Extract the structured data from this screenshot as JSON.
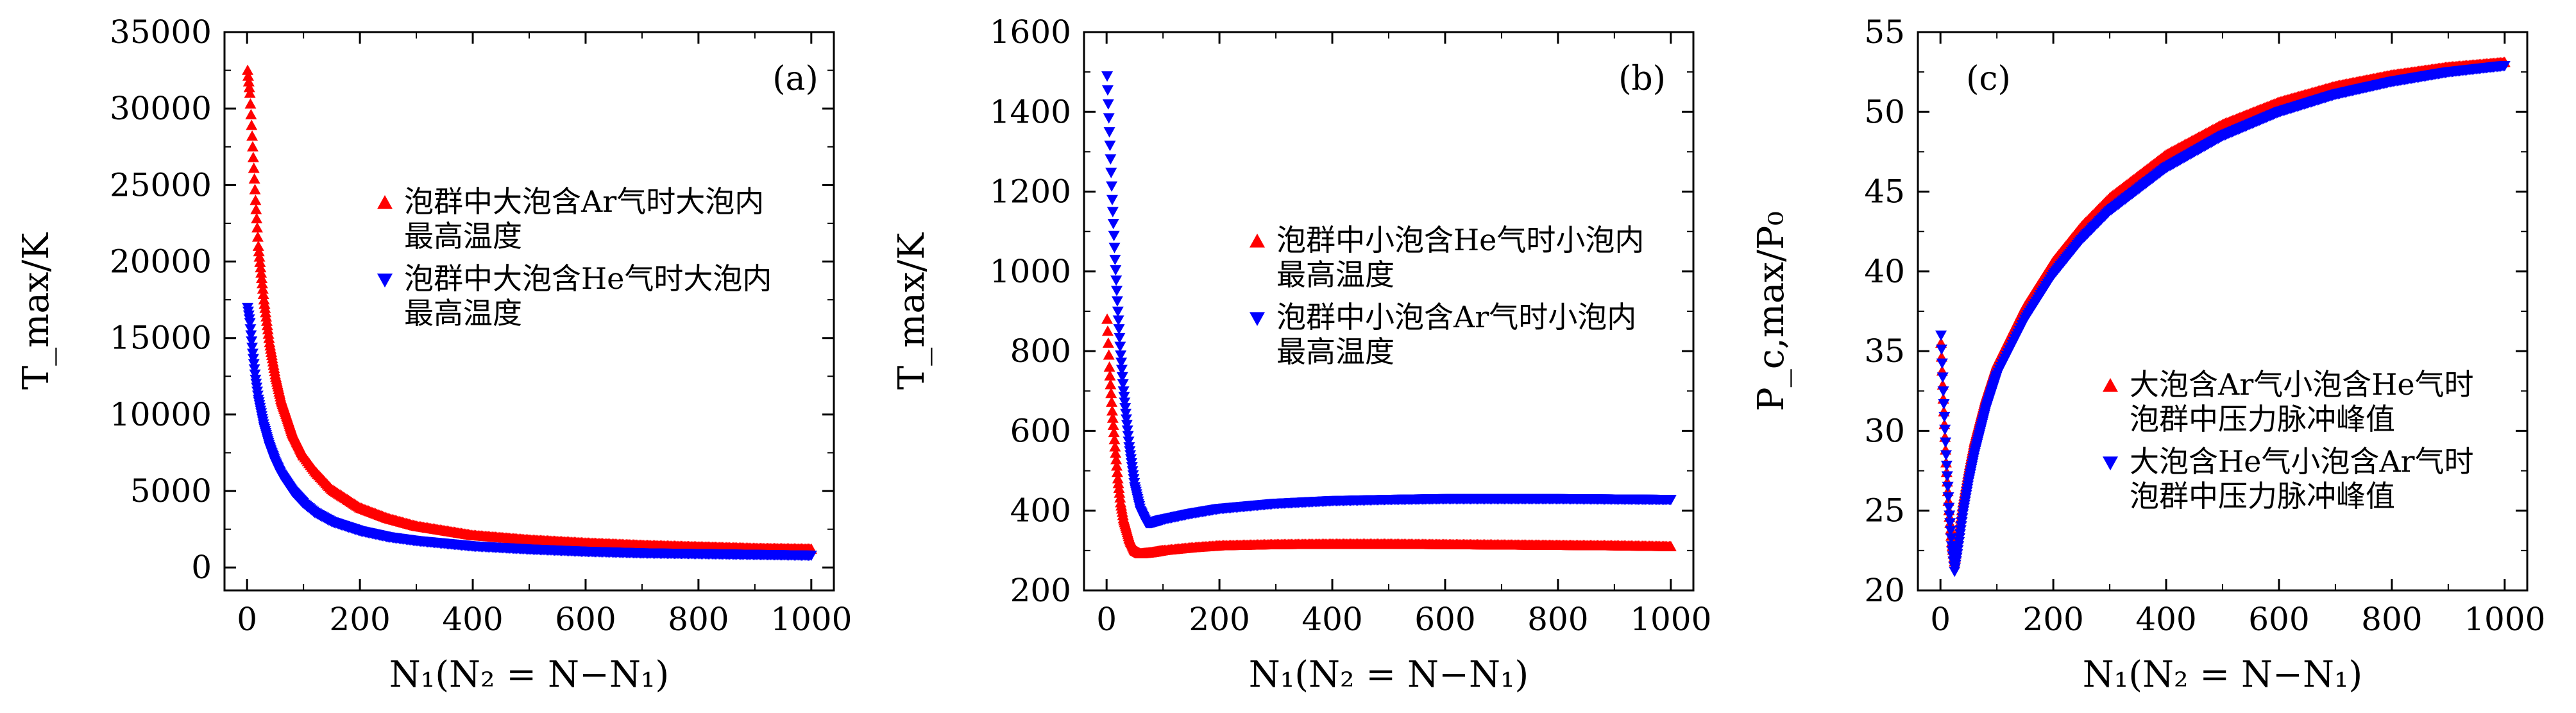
{
  "chart_data": [
    {
      "type": "scatter",
      "panel_label": "(a)",
      "xlabel": "N₁(N₂ = N−N₁)",
      "ylabel": "T_max/K",
      "xlim": [
        -40,
        1040
      ],
      "ylim": [
        -1500,
        35000
      ],
      "x_ticks": [
        0,
        200,
        400,
        600,
        800,
        1000
      ],
      "y_ticks": [
        0,
        5000,
        10000,
        15000,
        20000,
        25000,
        30000,
        35000
      ],
      "x_tick_labels": [
        "0",
        "200",
        "400",
        "600",
        "800",
        "1000"
      ],
      "y_tick_labels": [
        "0",
        "5000",
        "10000",
        "15000",
        "20000",
        "25000",
        "30000",
        "35000"
      ],
      "legend_position": "center-right",
      "grid": false,
      "series": [
        {
          "name": "泡群中大泡含Ar气时大泡内\n最高温度",
          "color": "#ff0000",
          "marker": "triangle-up",
          "x": [
            1,
            5,
            10,
            15,
            20,
            30,
            40,
            50,
            60,
            80,
            100,
            120,
            150,
            200,
            250,
            300,
            400,
            500,
            600,
            700,
            800,
            900,
            1000
          ],
          "y": [
            32500,
            31000,
            27500,
            24000,
            21000,
            17500,
            14700,
            12600,
            11000,
            8800,
            7300,
            6300,
            5100,
            3900,
            3200,
            2700,
            2100,
            1800,
            1600,
            1450,
            1350,
            1250,
            1200
          ]
        },
        {
          "name": "泡群中大泡含He气时大泡内\n最高温度",
          "color": "#0000ff",
          "marker": "triangle-down",
          "x": [
            1,
            5,
            10,
            15,
            20,
            30,
            40,
            50,
            60,
            80,
            100,
            120,
            150,
            200,
            250,
            300,
            400,
            500,
            600,
            700,
            800,
            900,
            1000
          ],
          "y": [
            17000,
            16000,
            14000,
            12300,
            11000,
            9200,
            7900,
            6900,
            6100,
            5000,
            4200,
            3600,
            3000,
            2400,
            2000,
            1750,
            1400,
            1200,
            1050,
            950,
            900,
            850,
            800
          ]
        }
      ]
    },
    {
      "type": "scatter",
      "panel_label": "(b)",
      "xlabel": "N₁(N₂ = N−N₁)",
      "ylabel": "T_max/K",
      "xlim": [
        -40,
        1040
      ],
      "ylim": [
        200,
        1600
      ],
      "x_ticks": [
        0,
        200,
        400,
        600,
        800,
        1000
      ],
      "y_ticks": [
        200,
        400,
        600,
        800,
        1000,
        1200,
        1400,
        1600
      ],
      "x_tick_labels": [
        "0",
        "200",
        "400",
        "600",
        "800",
        "1000"
      ],
      "y_tick_labels": [
        "200",
        "400",
        "600",
        "800",
        "1000",
        "1200",
        "1400",
        "1600"
      ],
      "legend_position": "center-right",
      "grid": false,
      "series": [
        {
          "name": "泡群中小泡含He气时小泡内\n最高温度",
          "color": "#ff0000",
          "marker": "triangle-up",
          "x": [
            1,
            5,
            10,
            15,
            20,
            25,
            30,
            40,
            50,
            60,
            80,
            100,
            150,
            200,
            300,
            400,
            500,
            600,
            700,
            800,
            900,
            1000
          ],
          "y": [
            880,
            760,
            650,
            560,
            480,
            420,
            380,
            330,
            300,
            292,
            295,
            300,
            307,
            312,
            315,
            316,
            316,
            315,
            314,
            313,
            312,
            310
          ]
        },
        {
          "name": "泡群中小泡含Ar气时小泡内\n最高温度",
          "color": "#0000ff",
          "marker": "triangle-down",
          "x": [
            1,
            5,
            10,
            15,
            20,
            25,
            30,
            40,
            50,
            60,
            70,
            80,
            100,
            150,
            200,
            300,
            400,
            500,
            600,
            700,
            800,
            900,
            1000
          ],
          "y": [
            1490,
            1350,
            1180,
            1030,
            900,
            790,
            700,
            560,
            460,
            400,
            370,
            370,
            378,
            393,
            405,
            418,
            425,
            428,
            430,
            430,
            430,
            429,
            428
          ]
        }
      ]
    },
    {
      "type": "scatter",
      "panel_label": "(c)",
      "xlabel": "N₁(N₂ = N−N₁)",
      "ylabel": "P_c,max/P₀",
      "xlim": [
        -40,
        1040
      ],
      "ylim": [
        20,
        55
      ],
      "x_ticks": [
        0,
        200,
        400,
        600,
        800,
        1000
      ],
      "y_ticks": [
        20,
        25,
        30,
        35,
        40,
        45,
        50,
        55
      ],
      "x_tick_labels": [
        "0",
        "200",
        "400",
        "600",
        "800",
        "1000"
      ],
      "y_tick_labels": [
        "20",
        "25",
        "30",
        "35",
        "40",
        "45",
        "50",
        "55"
      ],
      "legend_position": "bottom-right",
      "grid": false,
      "series": [
        {
          "name": "大泡含Ar气小泡含He气时\n泡群中压力脉冲峰值",
          "color": "#ff0000",
          "marker": "triangle-up",
          "x": [
            1,
            5,
            10,
            15,
            20,
            25,
            30,
            40,
            50,
            60,
            80,
            100,
            150,
            200,
            250,
            300,
            400,
            500,
            600,
            700,
            800,
            900,
            1000
          ],
          "y": [
            35.5,
            32,
            28,
            25,
            23,
            21.8,
            23,
            25.5,
            27.5,
            29.3,
            32,
            34.2,
            37.8,
            40.6,
            42.8,
            44.6,
            47.3,
            49.2,
            50.6,
            51.6,
            52.3,
            52.8,
            53.1
          ]
        },
        {
          "name": "大泡含He气小泡含Ar气时\n泡群中压力脉冲峰值",
          "color": "#0000ff",
          "marker": "triangle-down",
          "x": [
            1,
            5,
            10,
            15,
            20,
            25,
            30,
            40,
            50,
            60,
            80,
            100,
            150,
            200,
            250,
            300,
            400,
            500,
            600,
            700,
            800,
            900,
            1000
          ],
          "y": [
            36,
            32.5,
            28.5,
            25.2,
            22.8,
            21.2,
            22.3,
            24.8,
            26.8,
            28.5,
            31.3,
            33.5,
            37,
            39.8,
            42,
            43.8,
            46.5,
            48.5,
            50,
            51.1,
            51.9,
            52.5,
            52.9
          ]
        }
      ]
    }
  ]
}
